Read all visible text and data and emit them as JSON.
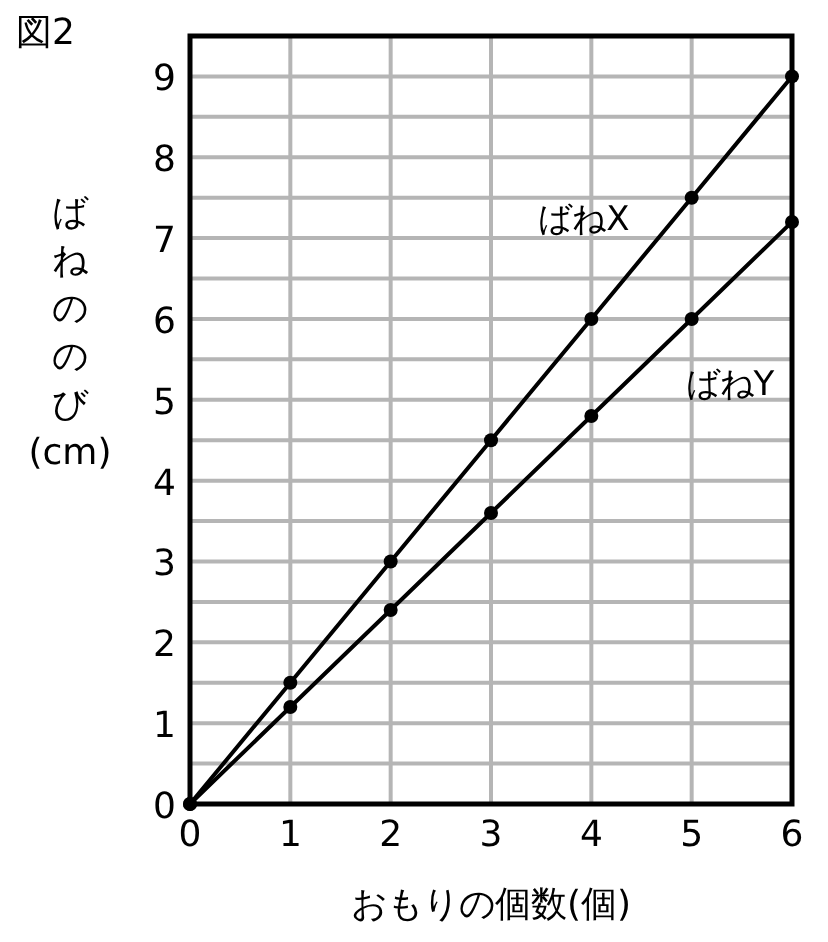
{
  "chart_data": {
    "type": "line",
    "title": "図2",
    "xlabel": "おもりの個数(個)",
    "ylabel": "ばねののび(cm)",
    "x": [
      0,
      1,
      2,
      3,
      4,
      5,
      6
    ],
    "series": [
      {
        "name": "ばねX",
        "color": "#000000",
        "values": [
          0,
          1.5,
          3,
          4.5,
          6,
          7.5,
          9
        ]
      },
      {
        "name": "ばねY",
        "color": "#000000",
        "values": [
          0,
          1.2,
          2.4,
          3.6,
          4.8,
          6,
          7.2
        ]
      }
    ],
    "xlim": [
      0,
      6
    ],
    "xticks": [
      0,
      1,
      2,
      3,
      4,
      5,
      6
    ],
    "ylim": [
      0,
      9.5
    ],
    "yticks": [
      0,
      {
        "value": 0.5,
        "label": null
      },
      1,
      {
        "value": 1.5,
        "label": null
      },
      2,
      {
        "value": 2.5,
        "label": null
      },
      3,
      {
        "value": 3.5,
        "label": null
      },
      4,
      {
        "value": 4.5,
        "label": null
      },
      5,
      {
        "value": 5.5,
        "label": null
      },
      6,
      {
        "value": 6.5,
        "label": null
      },
      7,
      {
        "value": 7.5,
        "label": null
      },
      8,
      {
        "value": 8.5,
        "label": null
      },
      9
    ],
    "grid": true,
    "marker": "circle",
    "line_style": "solid"
  }
}
